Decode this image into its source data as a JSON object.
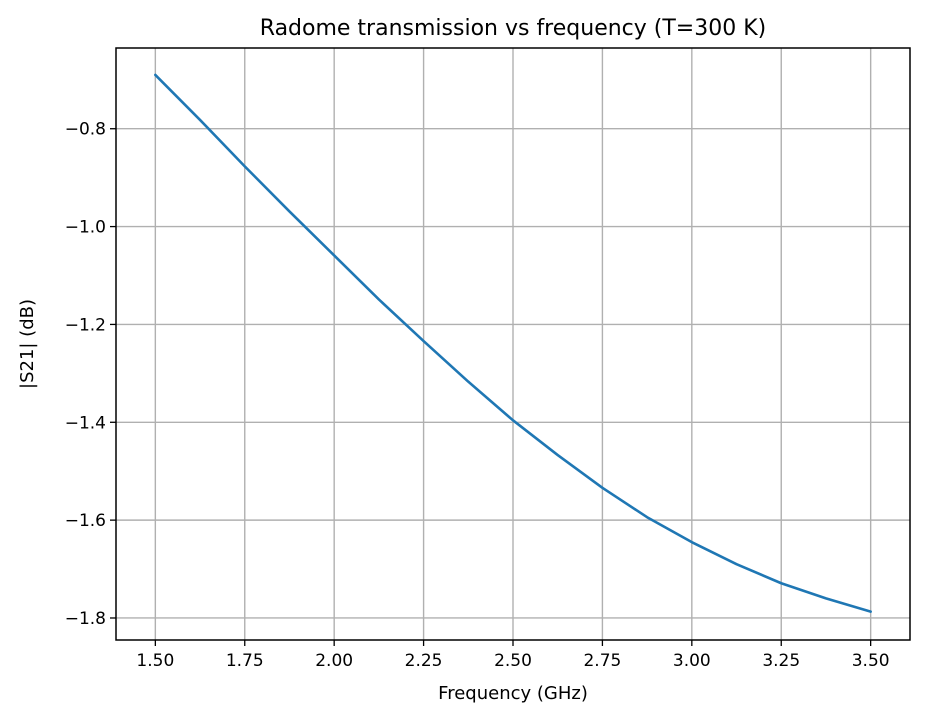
{
  "chart_data": {
    "type": "line",
    "title": "Radome transmission vs frequency (T=300 K)",
    "xlabel": "Frequency (GHz)",
    "ylabel": "|S21| (dB)",
    "xlim": [
      1.39,
      3.61
    ],
    "ylim": [
      -1.845,
      -0.635
    ],
    "x_ticks": [
      1.5,
      1.75,
      2.0,
      2.25,
      2.5,
      2.75,
      3.0,
      3.25,
      3.5
    ],
    "x_tick_labels": [
      "1.50",
      "1.75",
      "2.00",
      "2.25",
      "2.50",
      "2.75",
      "3.00",
      "3.25",
      "3.50"
    ],
    "y_ticks": [
      -0.8,
      -1.0,
      -1.2,
      -1.4,
      -1.6,
      -1.8
    ],
    "y_tick_labels": [
      "−0.8",
      "−1.0",
      "−1.2",
      "−1.4",
      "−1.6",
      "−1.8"
    ],
    "grid": true,
    "series": [
      {
        "color": "#1f77b4",
        "x": [
          1.5,
          1.625,
          1.75,
          1.875,
          2.0,
          2.125,
          2.25,
          2.375,
          2.5,
          2.625,
          2.75,
          2.875,
          3.0,
          3.125,
          3.25,
          3.375,
          3.5
        ],
        "y": [
          -0.69,
          -0.782,
          -0.877,
          -0.969,
          -1.059,
          -1.149,
          -1.234,
          -1.317,
          -1.396,
          -1.467,
          -1.534,
          -1.594,
          -1.645,
          -1.69,
          -1.729,
          -1.76,
          -1.787
        ]
      }
    ]
  }
}
